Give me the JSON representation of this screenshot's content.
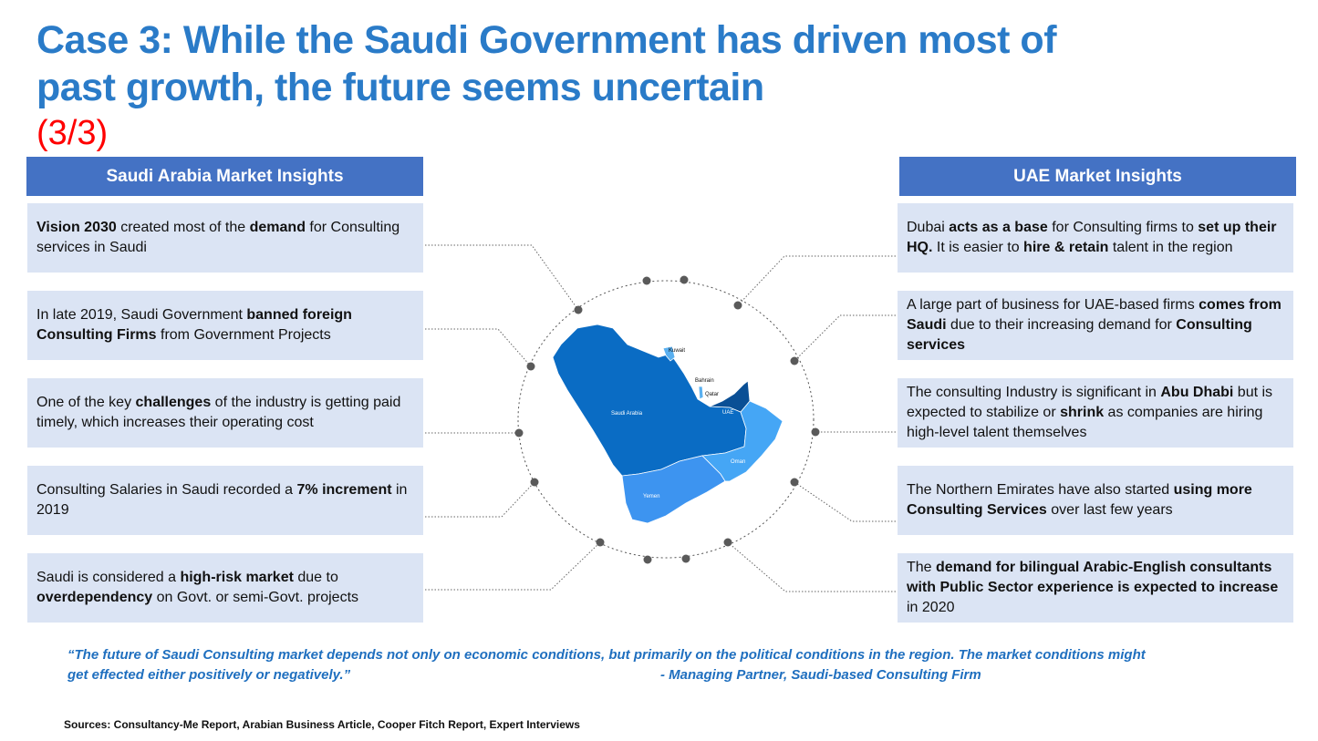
{
  "title": "Case 3: While the Saudi Government has driven most of past growth, the future seems uncertain",
  "subtitle": "(3/3)",
  "left_header": "Saudi Arabia Market Insights",
  "right_header": "UAE Market Insights",
  "left_items": [
    [
      {
        "t": "Vision 2030",
        "b": true
      },
      {
        "t": " created most of the "
      },
      {
        "t": "demand",
        "b": true
      },
      {
        "t": " for Consulting services in Saudi"
      }
    ],
    [
      {
        "t": "In late 2019, Saudi Government "
      },
      {
        "t": "banned foreign Consulting Firms",
        "b": true
      },
      {
        "t": " from Government Projects"
      }
    ],
    [
      {
        "t": "One of the key "
      },
      {
        "t": "challenges",
        "b": true
      },
      {
        "t": " of the industry is getting paid timely, which increases their operating cost"
      }
    ],
    [
      {
        "t": "Consulting Salaries in Saudi recorded a "
      },
      {
        "t": "7% increment",
        "b": true
      },
      {
        "t": " in 2019"
      }
    ],
    [
      {
        "t": "Saudi is considered a "
      },
      {
        "t": "high-risk market",
        "b": true
      },
      {
        "t": " due to "
      },
      {
        "t": "overdependency",
        "b": true
      },
      {
        "t": " on Govt. or semi-Govt. projects"
      }
    ]
  ],
  "right_items": [
    [
      {
        "t": "Dubai "
      },
      {
        "t": "acts as a base",
        "b": true
      },
      {
        "t": " for Consulting firms to "
      },
      {
        "t": "set up their HQ.",
        "b": true
      },
      {
        "t": " It is easier to "
      },
      {
        "t": "hire & retain",
        "b": true
      },
      {
        "t": " talent in the region"
      }
    ],
    [
      {
        "t": "A large part of business for UAE-based firms "
      },
      {
        "t": "comes from Saudi",
        "b": true
      },
      {
        "t": " due to their increasing demand for "
      },
      {
        "t": "Consulting services",
        "b": true
      }
    ],
    [
      {
        "t": "The consulting Industry is significant in "
      },
      {
        "t": "Abu Dhabi",
        "b": true
      },
      {
        "t": " but is expected to stabilize or "
      },
      {
        "t": "shrink",
        "b": true
      },
      {
        "t": " as companies are hiring high-level talent themselves"
      }
    ],
    [
      {
        "t": "The Northern Emirates have also started "
      },
      {
        "t": "using more Consulting Services",
        "b": true
      },
      {
        "t": " over last few years"
      }
    ],
    [
      {
        "t": "The "
      },
      {
        "t": "demand for bilingual Arabic-English consultants with Public Sector experience is expected to increase",
        "b": true
      },
      {
        "t": " in 2020"
      }
    ]
  ],
  "map_labels": {
    "saudi": "Saudi Arabia",
    "kuwait": "Kuwait",
    "bahrain": "Bahrain",
    "qatar": "Qatar",
    "uae": "UAE",
    "oman": "Oman",
    "yemen": "Yemen"
  },
  "quote": "“The future of Saudi Consulting market depends not only on economic conditions, but primarily on the political conditions in the region. The market conditions might get effected either positively or negatively.”",
  "attribution": "- Managing Partner, Saudi-based Consulting Firm",
  "sources": "Sources: Consultancy-Me Report, Arabian Business Article, Cooper Fitch Report, Expert Interviews",
  "colors": {
    "title": "#2a7bc8",
    "subtitle": "#ff0000",
    "header_bg": "#4472c4",
    "box_bg": "#dbe4f4",
    "saudi": "#0a6cc4",
    "yemen": "#3d94f0",
    "oman": "#45a6f5",
    "uae": "#0a4f95",
    "kuwait": "#5ab0f0",
    "quote": "#1f6fbf"
  }
}
